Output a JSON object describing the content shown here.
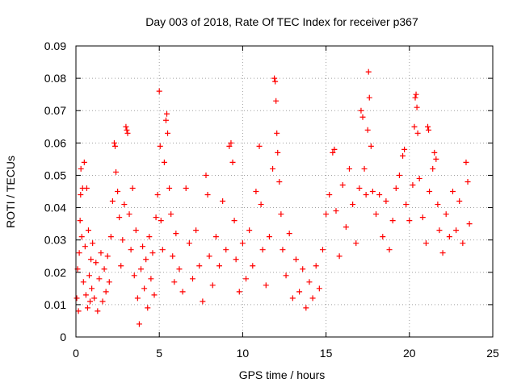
{
  "chart_data": {
    "type": "scatter",
    "title": "Day 003 of 2018, Rate Of TEC Index for receiver p367",
    "xlabel": "GPS time / hours",
    "ylabel": "ROTI / TECUs",
    "xlim": [
      0,
      25
    ],
    "ylim": [
      0,
      0.09
    ],
    "x_ticks": [
      0,
      5,
      10,
      15,
      20,
      25
    ],
    "y_ticks": [
      0,
      0.01,
      0.02,
      0.03,
      0.04,
      0.05,
      0.06,
      0.07,
      0.08,
      0.09
    ],
    "x_tick_labels": [
      "0",
      "5",
      "10",
      "15",
      "20",
      "25"
    ],
    "y_tick_labels": [
      "0",
      "0.01",
      "0.02",
      "0.03",
      "0.04",
      "0.05",
      "0.06",
      "0.07",
      "0.08",
      "0.09"
    ],
    "grid": true,
    "marker": "+",
    "series": [
      {
        "name": "ROTI",
        "color": "#ff0000",
        "points": [
          [
            0.05,
            0.012
          ],
          [
            0.1,
            0.021
          ],
          [
            0.15,
            0.008
          ],
          [
            0.2,
            0.026
          ],
          [
            0.25,
            0.036
          ],
          [
            0.28,
            0.044
          ],
          [
            0.3,
            0.052
          ],
          [
            0.35,
            0.031
          ],
          [
            0.4,
            0.046
          ],
          [
            0.45,
            0.017
          ],
          [
            0.5,
            0.054
          ],
          [
            0.55,
            0.028
          ],
          [
            0.6,
            0.013
          ],
          [
            0.65,
            0.046
          ],
          [
            0.7,
            0.009
          ],
          [
            0.75,
            0.033
          ],
          [
            0.8,
            0.019
          ],
          [
            0.85,
            0.011
          ],
          [
            0.9,
            0.024
          ],
          [
            0.95,
            0.015
          ],
          [
            1.0,
            0.029
          ],
          [
            1.1,
            0.012
          ],
          [
            1.2,
            0.023
          ],
          [
            1.3,
            0.008
          ],
          [
            1.4,
            0.018
          ],
          [
            1.5,
            0.026
          ],
          [
            1.6,
            0.011
          ],
          [
            1.7,
            0.021
          ],
          [
            1.8,
            0.014
          ],
          [
            1.9,
            0.025
          ],
          [
            2.0,
            0.017
          ],
          [
            2.1,
            0.031
          ],
          [
            2.2,
            0.042
          ],
          [
            2.3,
            0.06
          ],
          [
            2.35,
            0.059
          ],
          [
            2.4,
            0.051
          ],
          [
            2.5,
            0.045
          ],
          [
            2.6,
            0.037
          ],
          [
            2.7,
            0.022
          ],
          [
            2.8,
            0.03
          ],
          [
            2.9,
            0.041
          ],
          [
            3.0,
            0.065
          ],
          [
            3.05,
            0.064
          ],
          [
            3.1,
            0.063
          ],
          [
            3.2,
            0.038
          ],
          [
            3.3,
            0.027
          ],
          [
            3.4,
            0.046
          ],
          [
            3.5,
            0.019
          ],
          [
            3.6,
            0.033
          ],
          [
            3.7,
            0.012
          ],
          [
            3.8,
            0.004
          ],
          [
            3.9,
            0.021
          ],
          [
            4.0,
            0.028
          ],
          [
            4.1,
            0.015
          ],
          [
            4.2,
            0.024
          ],
          [
            4.3,
            0.009
          ],
          [
            4.4,
            0.031
          ],
          [
            4.5,
            0.018
          ],
          [
            4.6,
            0.026
          ],
          [
            4.7,
            0.013
          ],
          [
            4.8,
            0.037
          ],
          [
            4.9,
            0.044
          ],
          [
            5.0,
            0.076
          ],
          [
            5.05,
            0.059
          ],
          [
            5.1,
            0.036
          ],
          [
            5.2,
            0.027
          ],
          [
            5.3,
            0.054
          ],
          [
            5.4,
            0.067
          ],
          [
            5.45,
            0.069
          ],
          [
            5.5,
            0.063
          ],
          [
            5.6,
            0.046
          ],
          [
            5.7,
            0.038
          ],
          [
            5.8,
            0.025
          ],
          [
            5.9,
            0.017
          ],
          [
            6.0,
            0.032
          ],
          [
            6.2,
            0.021
          ],
          [
            6.4,
            0.014
          ],
          [
            6.6,
            0.046
          ],
          [
            6.8,
            0.029
          ],
          [
            7.0,
            0.018
          ],
          [
            7.2,
            0.033
          ],
          [
            7.4,
            0.022
          ],
          [
            7.6,
            0.011
          ],
          [
            7.8,
            0.05
          ],
          [
            7.9,
            0.044
          ],
          [
            8.0,
            0.025
          ],
          [
            8.2,
            0.016
          ],
          [
            8.4,
            0.031
          ],
          [
            8.6,
            0.022
          ],
          [
            8.8,
            0.042
          ],
          [
            9.0,
            0.027
          ],
          [
            9.2,
            0.059
          ],
          [
            9.3,
            0.06
          ],
          [
            9.4,
            0.054
          ],
          [
            9.5,
            0.036
          ],
          [
            9.6,
            0.024
          ],
          [
            9.8,
            0.014
          ],
          [
            10.0,
            0.029
          ],
          [
            10.2,
            0.018
          ],
          [
            10.4,
            0.033
          ],
          [
            10.6,
            0.022
          ],
          [
            10.8,
            0.045
          ],
          [
            11.0,
            0.059
          ],
          [
            11.1,
            0.041
          ],
          [
            11.2,
            0.027
          ],
          [
            11.4,
            0.016
          ],
          [
            11.6,
            0.031
          ],
          [
            11.8,
            0.052
          ],
          [
            11.9,
            0.08
          ],
          [
            11.95,
            0.079
          ],
          [
            12.0,
            0.073
          ],
          [
            12.05,
            0.063
          ],
          [
            12.1,
            0.057
          ],
          [
            12.2,
            0.048
          ],
          [
            12.3,
            0.038
          ],
          [
            12.4,
            0.027
          ],
          [
            12.6,
            0.019
          ],
          [
            12.8,
            0.032
          ],
          [
            13.0,
            0.012
          ],
          [
            13.2,
            0.024
          ],
          [
            13.4,
            0.014
          ],
          [
            13.6,
            0.021
          ],
          [
            13.8,
            0.009
          ],
          [
            14.0,
            0.017
          ],
          [
            14.2,
            0.012
          ],
          [
            14.4,
            0.022
          ],
          [
            14.6,
            0.015
          ],
          [
            14.8,
            0.027
          ],
          [
            15.0,
            0.038
          ],
          [
            15.2,
            0.044
          ],
          [
            15.4,
            0.057
          ],
          [
            15.5,
            0.058
          ],
          [
            15.6,
            0.039
          ],
          [
            15.8,
            0.025
          ],
          [
            16.0,
            0.047
          ],
          [
            16.2,
            0.034
          ],
          [
            16.4,
            0.052
          ],
          [
            16.6,
            0.041
          ],
          [
            16.8,
            0.029
          ],
          [
            17.0,
            0.046
          ],
          [
            17.1,
            0.07
          ],
          [
            17.2,
            0.068
          ],
          [
            17.3,
            0.052
          ],
          [
            17.4,
            0.044
          ],
          [
            17.5,
            0.064
          ],
          [
            17.55,
            0.082
          ],
          [
            17.6,
            0.074
          ],
          [
            17.7,
            0.059
          ],
          [
            17.8,
            0.045
          ],
          [
            18.0,
            0.038
          ],
          [
            18.2,
            0.044
          ],
          [
            18.4,
            0.031
          ],
          [
            18.6,
            0.042
          ],
          [
            18.8,
            0.027
          ],
          [
            19.0,
            0.036
          ],
          [
            19.2,
            0.046
          ],
          [
            19.4,
            0.05
          ],
          [
            19.6,
            0.056
          ],
          [
            19.7,
            0.058
          ],
          [
            19.8,
            0.041
          ],
          [
            20.0,
            0.036
          ],
          [
            20.2,
            0.047
          ],
          [
            20.3,
            0.065
          ],
          [
            20.35,
            0.074
          ],
          [
            20.4,
            0.075
          ],
          [
            20.45,
            0.071
          ],
          [
            20.5,
            0.063
          ],
          [
            20.6,
            0.049
          ],
          [
            20.8,
            0.037
          ],
          [
            21.0,
            0.029
          ],
          [
            21.1,
            0.065
          ],
          [
            21.15,
            0.064
          ],
          [
            21.2,
            0.045
          ],
          [
            21.4,
            0.052
          ],
          [
            21.5,
            0.057
          ],
          [
            21.6,
            0.055
          ],
          [
            21.7,
            0.041
          ],
          [
            21.8,
            0.033
          ],
          [
            22.0,
            0.026
          ],
          [
            22.2,
            0.038
          ],
          [
            22.4,
            0.031
          ],
          [
            22.6,
            0.045
          ],
          [
            22.8,
            0.033
          ],
          [
            23.0,
            0.042
          ],
          [
            23.2,
            0.029
          ],
          [
            23.4,
            0.054
          ],
          [
            23.5,
            0.048
          ],
          [
            23.6,
            0.035
          ]
        ]
      }
    ]
  }
}
